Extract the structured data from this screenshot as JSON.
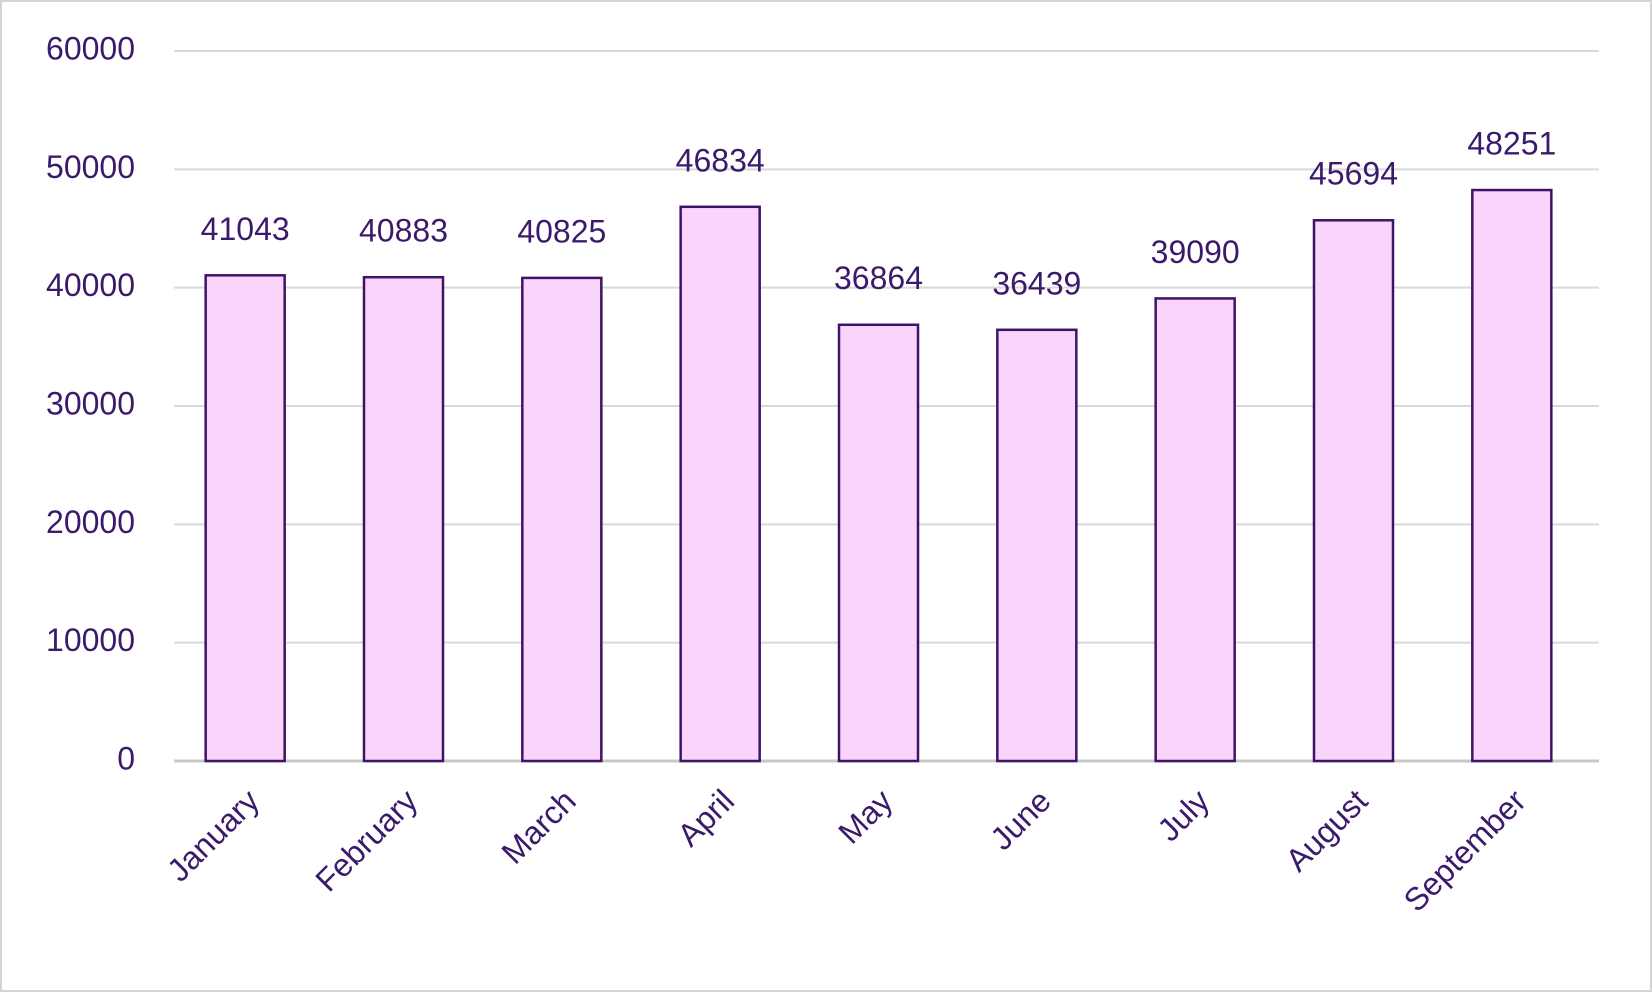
{
  "chart_data": {
    "type": "bar",
    "categories": [
      "January",
      "February",
      "March",
      "April",
      "May",
      "June",
      "July",
      "August",
      "September"
    ],
    "values": [
      41043,
      40883,
      40825,
      46834,
      36864,
      36439,
      39090,
      45694,
      48251
    ],
    "color": "#f9d5fb",
    "edge_color": "#3d1466",
    "ylim": [
      0,
      60000
    ],
    "yticks": [
      0,
      10000,
      20000,
      30000,
      40000,
      50000,
      60000
    ],
    "grid": true,
    "data_labels": true
  }
}
